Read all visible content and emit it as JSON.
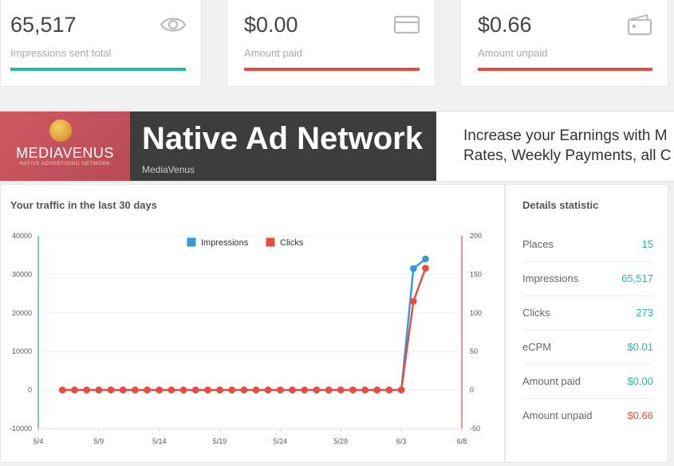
{
  "cards": [
    {
      "value": "65,517",
      "label": "Impressions sent total",
      "icon": "eye-icon",
      "bar_color": "#26b99a"
    },
    {
      "value": "$0.00",
      "label": "Amount paid",
      "icon": "credit-card-icon",
      "bar_color": "#e74c3c"
    },
    {
      "value": "$0.66",
      "label": "Amount unpaid",
      "icon": "wallet-icon",
      "bar_color": "#e74c3c"
    }
  ],
  "banner": {
    "logo_brand": "MEDIAVENUS",
    "logo_tagline": "NATIVE ADVERTISING NETWORK",
    "headline": "Native Ad Network",
    "subtext": "MediaVenus",
    "promo_line1": "Increase your Earnings with M",
    "promo_line2": "Rates, Weekly Payments, all C"
  },
  "traffic": {
    "title": "Your traffic in the last 30 days"
  },
  "chart_data": {
    "type": "line",
    "x_tick_labels": [
      "5/4",
      "5/9",
      "5/14",
      "5/19",
      "5/24",
      "5/29",
      "6/3",
      "6/8"
    ],
    "x": [
      "5/6",
      "5/7",
      "5/8",
      "5/9",
      "5/10",
      "5/11",
      "5/12",
      "5/13",
      "5/14",
      "5/15",
      "5/16",
      "5/17",
      "5/18",
      "5/19",
      "5/20",
      "5/21",
      "5/22",
      "5/23",
      "5/24",
      "5/25",
      "5/26",
      "5/27",
      "5/28",
      "5/29",
      "5/30",
      "5/31",
      "6/1",
      "6/2",
      "6/3",
      "6/4",
      "6/5"
    ],
    "legend": [
      "Impressions",
      "Clicks"
    ],
    "legend_position": "top-center",
    "series": [
      {
        "name": "Impressions",
        "axis": "left",
        "color": "#3498db",
        "values": [
          0,
          0,
          0,
          0,
          0,
          0,
          0,
          0,
          0,
          0,
          0,
          0,
          0,
          0,
          0,
          0,
          0,
          0,
          0,
          0,
          0,
          0,
          0,
          0,
          0,
          0,
          0,
          0,
          0,
          31500,
          34000
        ]
      },
      {
        "name": "Clicks",
        "axis": "right",
        "color": "#e74c3c",
        "values": [
          0,
          0,
          0,
          0,
          0,
          0,
          0,
          0,
          0,
          0,
          0,
          0,
          0,
          0,
          0,
          0,
          0,
          0,
          0,
          0,
          0,
          0,
          0,
          0,
          0,
          0,
          0,
          0,
          0,
          115,
          158
        ]
      }
    ],
    "y_left": {
      "min": -10000,
      "max": 40000,
      "ticks": [
        "-10000",
        "0",
        "10000",
        "20000",
        "30000",
        "40000"
      ]
    },
    "y_right": {
      "min": -50,
      "max": 200,
      "ticks": [
        "-50",
        "0",
        "50",
        "100",
        "150",
        "200"
      ]
    },
    "grid": true
  },
  "details": {
    "title": "Details statistic",
    "rows": [
      {
        "label": "Places",
        "value": "15",
        "color": "#26b99a"
      },
      {
        "label": "Impressions",
        "value": "65,517",
        "color": "#26b99a"
      },
      {
        "label": "Clicks",
        "value": "273",
        "color": "#26b99a"
      },
      {
        "label": "eCPM",
        "value": "$0.01",
        "color": "#26b99a"
      },
      {
        "label": "Amount paid",
        "value": "$0.00",
        "color": "#26b99a"
      },
      {
        "label": "Amount unpaid",
        "value": "$0.66",
        "color": "#e74c3c"
      }
    ]
  }
}
